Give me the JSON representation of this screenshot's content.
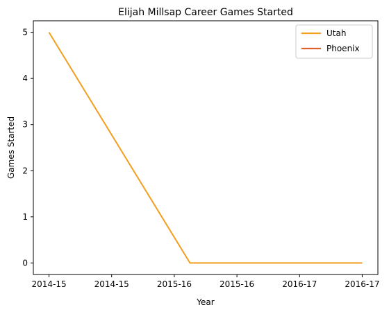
{
  "chart_data": {
    "type": "line",
    "title": "Elijah Millsap Career Games Started",
    "xlabel": "Year",
    "ylabel": "Games Started",
    "x_tick_labels": [
      "2014-15",
      "2014-15",
      "2015-16",
      "2015-16",
      "2016-17",
      "2016-17"
    ],
    "x_range": [
      -0.25,
      5.25
    ],
    "ylim": [
      -0.25,
      5.25
    ],
    "y_ticks": [
      0,
      1,
      2,
      3,
      4,
      5
    ],
    "grid": false,
    "legend_position": "top-right",
    "series": [
      {
        "name": "Utah",
        "color": "#f29e1e",
        "points": [
          [
            0,
            5
          ],
          [
            2.25,
            0
          ],
          [
            5,
            0
          ]
        ]
      },
      {
        "name": "Phoenix",
        "color": "#e0622a",
        "points": []
      }
    ]
  }
}
